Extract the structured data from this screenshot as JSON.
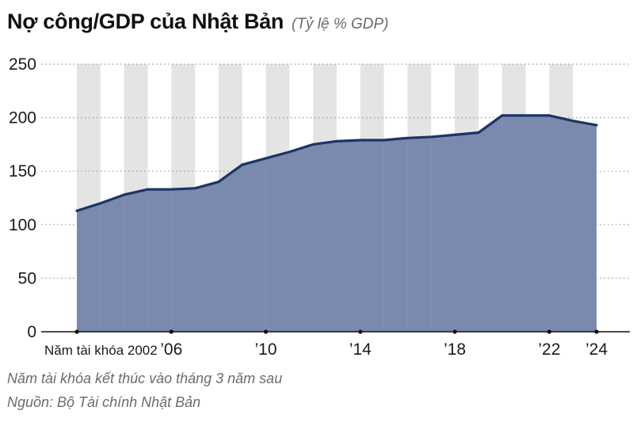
{
  "header": {
    "title": "Nợ công/GDP của Nhật Bản",
    "subtitle": "(Tỷ lệ % GDP)"
  },
  "footer": {
    "note": "Năm tài khóa kết thúc vào tháng 3 năm sau",
    "source": "Nguồn: Bộ Tài chính Nhật Bản"
  },
  "colors": {
    "area": "#7a89ad",
    "line": "#1b3466",
    "stripe": "#e4e4e4",
    "grid": "#9a9a9a"
  },
  "chart_data": {
    "type": "area",
    "title": "Nợ công/GDP của Nhật Bản",
    "subtitle": "(Tỷ lệ % GDP)",
    "x": [
      2002,
      2003,
      2004,
      2005,
      2006,
      2007,
      2008,
      2009,
      2010,
      2011,
      2012,
      2013,
      2014,
      2015,
      2016,
      2017,
      2018,
      2019,
      2020,
      2021,
      2022,
      2023,
      2024
    ],
    "series": [
      {
        "values": [
          113,
          120,
          128,
          133,
          133,
          134,
          140,
          156,
          162,
          168,
          175,
          178,
          179,
          179,
          181,
          182,
          184,
          186,
          202,
          202,
          202,
          197,
          193
        ]
      }
    ],
    "xticks": [
      {
        "x": 2002,
        "label": "Năm tài khóa 2002"
      },
      {
        "x": 2006,
        "label": "’06"
      },
      {
        "x": 2010,
        "label": "’10"
      },
      {
        "x": 2014,
        "label": "’14"
      },
      {
        "x": 2018,
        "label": "’18"
      },
      {
        "x": 2022,
        "label": "’22"
      },
      {
        "x": 2024,
        "label": "’24"
      }
    ],
    "yticks": [
      0,
      50,
      100,
      150,
      200,
      250
    ],
    "ylim": [
      0,
      250
    ],
    "xlim": [
      2002,
      2024
    ],
    "grid": true,
    "alternating_year_shading": true
  }
}
